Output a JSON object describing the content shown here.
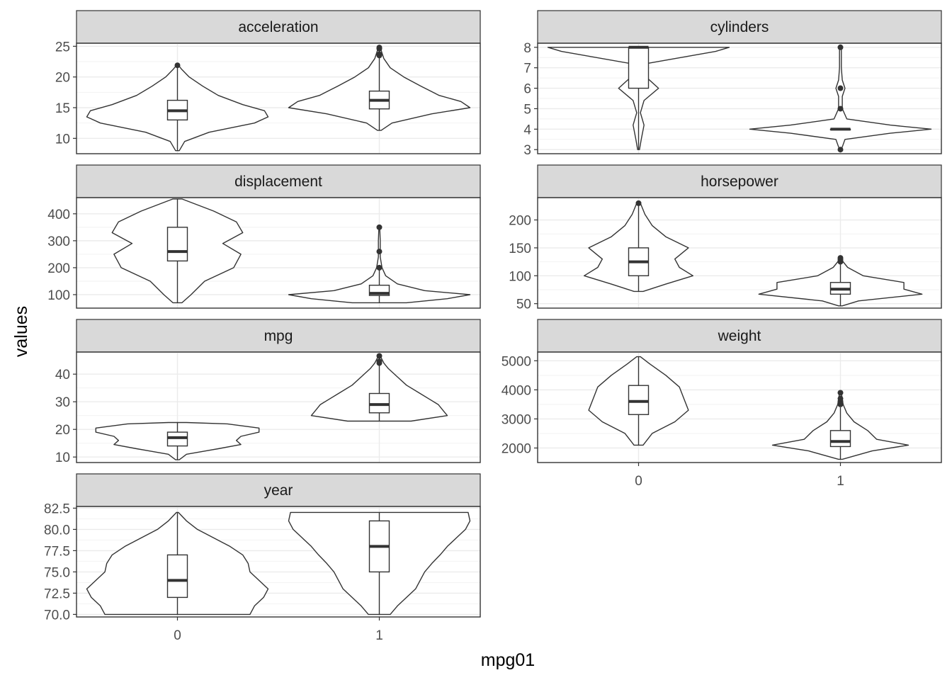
{
  "chart_data": {
    "type": "violin",
    "xlabel": "mpg01",
    "ylabel": "values",
    "x_categories": [
      "0",
      "1"
    ],
    "grid": true,
    "panels": [
      {
        "name": "acceleration",
        "ylim": [
          7.5,
          25.5
        ],
        "yticks": [
          "10",
          "15",
          "20",
          "25"
        ],
        "yticks_values": [
          10,
          15,
          20,
          25
        ],
        "groups": [
          {
            "x": "0",
            "min": 8.0,
            "q1": 13.0,
            "median": 14.5,
            "q3": 16.2,
            "max": 21.9,
            "outliers": [
              21.9
            ],
            "density": [
              [
                8.0,
                0.02
              ],
              [
                9.5,
                0.08
              ],
              [
                11,
                0.35
              ],
              [
                12.5,
                0.85
              ],
              [
                13.5,
                1.0
              ],
              [
                14.5,
                0.96
              ],
              [
                15.5,
                0.72
              ],
              [
                17,
                0.45
              ],
              [
                18.5,
                0.28
              ],
              [
                20,
                0.13
              ],
              [
                21.2,
                0.05
              ],
              [
                21.9,
                0.01
              ]
            ]
          },
          {
            "x": "1",
            "min": 11.3,
            "q1": 14.8,
            "median": 16.2,
            "q3": 17.7,
            "max": 24.8,
            "outliers": [
              23.5,
              23.7,
              24.6,
              24.8
            ],
            "density": [
              [
                11.3,
                0.02
              ],
              [
                12.5,
                0.14
              ],
              [
                14,
                0.58
              ],
              [
                15,
                1.0
              ],
              [
                16,
                0.9
              ],
              [
                17,
                0.66
              ],
              [
                18.5,
                0.46
              ],
              [
                20,
                0.27
              ],
              [
                21.5,
                0.12
              ],
              [
                23,
                0.05
              ],
              [
                24.8,
                0.01
              ]
            ]
          }
        ]
      },
      {
        "name": "cylinders",
        "ylim": [
          2.8,
          8.2
        ],
        "yticks": [
          "3",
          "4",
          "5",
          "6",
          "7",
          "8"
        ],
        "yticks_values": [
          3,
          4,
          5,
          6,
          7,
          8
        ],
        "groups": [
          {
            "x": "0",
            "min": 3,
            "q1": 6,
            "median": 8,
            "q3": 8,
            "max": 8,
            "outliers": [],
            "density": [
              [
                3.0,
                0.01
              ],
              [
                3.5,
                0.03
              ],
              [
                4.2,
                0.06
              ],
              [
                4.8,
                0.02
              ],
              [
                5.4,
                0.06
              ],
              [
                6.0,
                0.22
              ],
              [
                6.6,
                0.07
              ],
              [
                7.2,
                0.08
              ],
              [
                7.8,
                0.85
              ],
              [
                8.0,
                1.0
              ]
            ]
          },
          {
            "x": "1",
            "min": 4,
            "q1": 4,
            "median": 4,
            "q3": 4,
            "max": 4,
            "outliers": [
              3,
              5,
              6,
              8
            ],
            "density": [
              [
                3.0,
                0.01
              ],
              [
                3.5,
                0.05
              ],
              [
                3.8,
                0.55
              ],
              [
                4.0,
                1.0
              ],
              [
                4.2,
                0.55
              ],
              [
                4.5,
                0.07
              ],
              [
                5.0,
                0.02
              ],
              [
                5.6,
                0.02
              ],
              [
                6.0,
                0.05
              ],
              [
                6.4,
                0.02
              ],
              [
                7.0,
                0.01
              ],
              [
                8.0,
                0.01
              ]
            ]
          }
        ]
      },
      {
        "name": "displacement",
        "ylim": [
          50,
          460
        ],
        "yticks": [
          "100",
          "200",
          "300",
          "400"
        ],
        "yticks_values": [
          100,
          200,
          300,
          400
        ],
        "groups": [
          {
            "x": "0",
            "min": 70,
            "q1": 225,
            "median": 260,
            "q3": 350,
            "max": 455,
            "outliers": [],
            "density": [
              [
                70,
                0.05
              ],
              [
                100,
                0.15
              ],
              [
                150,
                0.3
              ],
              [
                200,
                0.62
              ],
              [
                250,
                0.7
              ],
              [
                290,
                0.5
              ],
              [
                330,
                0.72
              ],
              [
                370,
                0.65
              ],
              [
                410,
                0.4
              ],
              [
                455,
                0.05
              ]
            ]
          },
          {
            "x": "1",
            "min": 70,
            "q1": 97,
            "median": 105,
            "q3": 135,
            "max": 200,
            "outliers": [
              200,
              260,
              350
            ],
            "density": [
              [
                70,
                0.3
              ],
              [
                85,
                0.75
              ],
              [
                100,
                1.0
              ],
              [
                115,
                0.5
              ],
              [
                140,
                0.2
              ],
              [
                170,
                0.07
              ],
              [
                200,
                0.03
              ],
              [
                240,
                0.01
              ],
              [
                300,
                0.01
              ],
              [
                350,
                0.005
              ]
            ]
          }
        ]
      },
      {
        "name": "horsepower",
        "ylim": [
          42,
          240
        ],
        "yticks": [
          "50",
          "100",
          "150",
          "200"
        ],
        "yticks_values": [
          50,
          100,
          150,
          200
        ],
        "groups": [
          {
            "x": "0",
            "min": 72,
            "q1": 100,
            "median": 125,
            "q3": 150,
            "max": 230,
            "outliers": [
              230
            ],
            "density": [
              [
                72,
                0.05
              ],
              [
                85,
                0.3
              ],
              [
                100,
                0.6
              ],
              [
                115,
                0.45
              ],
              [
                130,
                0.4
              ],
              [
                150,
                0.55
              ],
              [
                170,
                0.3
              ],
              [
                190,
                0.15
              ],
              [
                210,
                0.07
              ],
              [
                230,
                0.02
              ]
            ]
          },
          {
            "x": "1",
            "min": 46,
            "q1": 67,
            "median": 76,
            "q3": 88,
            "max": 120,
            "outliers": [
              125,
              129,
              132
            ],
            "density": [
              [
                46,
                0.02
              ],
              [
                55,
                0.2
              ],
              [
                67,
                0.9
              ],
              [
                76,
                0.7
              ],
              [
                88,
                0.7
              ],
              [
                100,
                0.25
              ],
              [
                115,
                0.08
              ],
              [
                125,
                0.03
              ],
              [
                132,
                0.01
              ]
            ]
          }
        ]
      },
      {
        "name": "mpg",
        "ylim": [
          8,
          48
        ],
        "yticks": [
          "10",
          "20",
          "30",
          "40"
        ],
        "yticks_values": [
          10,
          20,
          30,
          40
        ],
        "groups": [
          {
            "x": "0",
            "min": 9,
            "q1": 14,
            "median": 17,
            "q3": 19,
            "max": 22.5,
            "outliers": [],
            "density": [
              [
                9,
                0.02
              ],
              [
                11,
                0.1
              ],
              [
                13,
                0.45
              ],
              [
                14.5,
                0.7
              ],
              [
                16,
                0.65
              ],
              [
                17.5,
                0.7
              ],
              [
                19,
                0.9
              ],
              [
                20.5,
                0.9
              ],
              [
                22,
                0.55
              ],
              [
                22.5,
                0.1
              ]
            ]
          },
          {
            "x": "1",
            "min": 23,
            "q1": 26,
            "median": 29,
            "q3": 33,
            "max": 46.6,
            "outliers": [
              44,
              44.6,
              46.6
            ],
            "density": [
              [
                23,
                0.35
              ],
              [
                25,
                0.75
              ],
              [
                27,
                0.7
              ],
              [
                29,
                0.65
              ],
              [
                31,
                0.55
              ],
              [
                33,
                0.45
              ],
              [
                36,
                0.3
              ],
              [
                39,
                0.2
              ],
              [
                42,
                0.1
              ],
              [
                44,
                0.05
              ],
              [
                46.6,
                0.01
              ]
            ]
          }
        ]
      },
      {
        "name": "weight",
        "ylim": [
          1500,
          5300
        ],
        "yticks": [
          "2000",
          "3000",
          "4000",
          "5000"
        ],
        "yticks_values": [
          2000,
          3000,
          4000,
          5000
        ],
        "groups": [
          {
            "x": "0",
            "min": 2100,
            "q1": 3150,
            "median": 3600,
            "q3": 4150,
            "max": 5140,
            "outliers": [],
            "density": [
              [
                2100,
                0.05
              ],
              [
                2500,
                0.15
              ],
              [
                2900,
                0.4
              ],
              [
                3300,
                0.55
              ],
              [
                3700,
                0.5
              ],
              [
                4100,
                0.45
              ],
              [
                4500,
                0.3
              ],
              [
                4900,
                0.12
              ],
              [
                5140,
                0.02
              ]
            ]
          },
          {
            "x": "1",
            "min": 1613,
            "q1": 2050,
            "median": 2225,
            "q3": 2600,
            "max": 3400,
            "outliers": [
              3500,
              3600,
              3700,
              3900
            ],
            "density": [
              [
                1613,
                0.02
              ],
              [
                1900,
                0.35
              ],
              [
                2100,
                0.75
              ],
              [
                2300,
                0.4
              ],
              [
                2600,
                0.3
              ],
              [
                2900,
                0.15
              ],
              [
                3200,
                0.07
              ],
              [
                3500,
                0.03
              ],
              [
                3900,
                0.01
              ]
            ]
          }
        ]
      },
      {
        "name": "year",
        "ylim": [
          69.7,
          82.7
        ],
        "yticks": [
          "70.0",
          "72.5",
          "75.0",
          "77.5",
          "80.0",
          "82.5"
        ],
        "yticks_values": [
          70.0,
          72.5,
          75.0,
          77.5,
          80.0,
          82.5
        ],
        "groups": [
          {
            "x": "0",
            "min": 70,
            "q1": 72,
            "median": 74,
            "q3": 77,
            "max": 82,
            "outliers": [],
            "density": [
              [
                70,
                0.8
              ],
              [
                71,
                0.85
              ],
              [
                72,
                0.95
              ],
              [
                73,
                1.0
              ],
              [
                74,
                0.9
              ],
              [
                75,
                0.8
              ],
              [
                76,
                0.78
              ],
              [
                77,
                0.72
              ],
              [
                78,
                0.58
              ],
              [
                79,
                0.4
              ],
              [
                80,
                0.22
              ],
              [
                81,
                0.1
              ],
              [
                82,
                0.01
              ]
            ]
          },
          {
            "x": "1",
            "min": 70,
            "q1": 75,
            "median": 78,
            "q3": 81,
            "max": 82,
            "outliers": [],
            "density": [
              [
                70,
                0.12
              ],
              [
                71,
                0.2
              ],
              [
                72,
                0.3
              ],
              [
                73,
                0.4
              ],
              [
                74,
                0.45
              ],
              [
                75,
                0.5
              ],
              [
                76,
                0.58
              ],
              [
                77,
                0.67
              ],
              [
                78,
                0.75
              ],
              [
                79,
                0.85
              ],
              [
                80,
                0.95
              ],
              [
                81,
                1.0
              ],
              [
                82,
                0.98
              ]
            ]
          }
        ]
      }
    ]
  }
}
